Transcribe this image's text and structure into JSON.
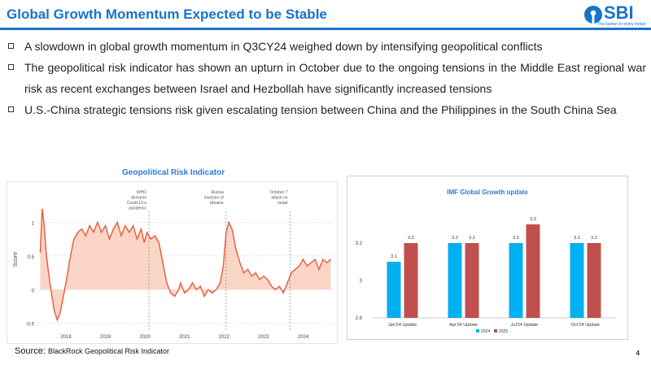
{
  "header": {
    "title": "Global Growth Momentum Expected to be Stable",
    "logo_text": "SBI",
    "logo_tagline": "The banker to every Indian"
  },
  "bullets": [
    "A slowdown in global growth momentum in Q3CY24 weighed down by intensifying geopolitical conflicts",
    "The geopolitical risk indicator has shown an upturn in October due to the ongoing tensions in the Middle East regional war risk as recent exchanges between Israel and Hezbollah have significantly increased tensions",
    "U.S.-China strategic tensions risk given escalating tension between China and the Philippines in the South China Sea"
  ],
  "source": {
    "label": "Source:",
    "text": "BlackRock Geopolitical Risk Indicator"
  },
  "page_number": "4",
  "colors": {
    "accent": "#1a73c8",
    "series_2024": "#00b0f0",
    "series_2025": "#c0504d",
    "geo_line": "#e8593c",
    "geo_fill": "#fad5c6"
  },
  "chart_data": [
    {
      "type": "area",
      "title": "Geopolitical Risk Indicator",
      "ylabel": "Score",
      "ylim": [
        -0.6,
        1.5
      ],
      "yticks": [
        "-0.5",
        "0",
        "0.5",
        "1"
      ],
      "x_tick_labels": [
        "2018",
        "2019",
        "2020",
        "2021",
        "2022",
        "2023",
        "2024"
      ],
      "annotations": [
        {
          "text": [
            "WHO",
            "declares",
            "Covid-19 a",
            "pandemic"
          ],
          "x": 2020.2
        },
        {
          "text": [
            "Russia",
            "invasion of",
            "Ukraine"
          ],
          "x": 2022.15
        },
        {
          "text": [
            "October 7",
            "attack on",
            "Israel"
          ],
          "x": 2023.77
        }
      ],
      "x": [
        2017.45,
        2017.5,
        2017.55,
        2017.6,
        2017.65,
        2017.72,
        2017.8,
        2017.88,
        2017.95,
        2018.02,
        2018.1,
        2018.2,
        2018.3,
        2018.4,
        2018.5,
        2018.6,
        2018.7,
        2018.8,
        2018.9,
        2019.0,
        2019.1,
        2019.2,
        2019.3,
        2019.4,
        2019.5,
        2019.6,
        2019.7,
        2019.8,
        2019.9,
        2020.0,
        2020.08,
        2020.15,
        2020.25,
        2020.35,
        2020.45,
        2020.55,
        2020.65,
        2020.75,
        2020.85,
        2020.95,
        2021.0,
        2021.1,
        2021.2,
        2021.3,
        2021.4,
        2021.5,
        2021.6,
        2021.7,
        2021.8,
        2021.9,
        2022.0,
        2022.08,
        2022.15,
        2022.22,
        2022.3,
        2022.4,
        2022.5,
        2022.6,
        2022.7,
        2022.8,
        2022.9,
        2023.0,
        2023.1,
        2023.2,
        2023.3,
        2023.4,
        2023.5,
        2023.6,
        2023.7,
        2023.8,
        2023.9,
        2024.0,
        2024.1,
        2024.2,
        2024.3,
        2024.4,
        2024.5,
        2024.6,
        2024.7,
        2024.8
      ],
      "y": [
        0.55,
        1.2,
        0.95,
        0.55,
        0.3,
        0.0,
        -0.3,
        -0.45,
        -0.35,
        -0.15,
        0.1,
        0.45,
        0.75,
        0.85,
        0.9,
        0.8,
        0.95,
        0.85,
        1.0,
        0.85,
        0.95,
        0.75,
        0.9,
        1.0,
        0.8,
        0.95,
        0.85,
        0.95,
        0.75,
        0.9,
        0.7,
        0.85,
        0.75,
        0.8,
        0.7,
        0.4,
        0.1,
        -0.05,
        -0.1,
        0.0,
        0.1,
        -0.05,
        0.0,
        0.1,
        0.0,
        0.05,
        -0.1,
        0.0,
        -0.05,
        0.0,
        0.1,
        0.35,
        0.85,
        1.0,
        0.9,
        0.6,
        0.4,
        0.25,
        0.3,
        0.2,
        0.25,
        0.15,
        0.2,
        0.15,
        0.05,
        0.0,
        0.05,
        -0.05,
        0.1,
        0.25,
        0.3,
        0.35,
        0.45,
        0.35,
        0.4,
        0.45,
        0.3,
        0.45,
        0.4,
        0.45
      ]
    },
    {
      "type": "bar",
      "title": "IMF Global Growth update",
      "categories": [
        "Jan'24 Update",
        "Apr'24 Update",
        "Jul'24 Update",
        "Oct'24 Update"
      ],
      "ylim": [
        2.8,
        3.4
      ],
      "yticks": [
        "2.8",
        "3",
        "3.2"
      ],
      "series": [
        {
          "name": "2024",
          "values": [
            3.1,
            3.2,
            3.2,
            3.2
          ],
          "labels": [
            "3.1",
            "3.2",
            "3.2",
            "3.2"
          ]
        },
        {
          "name": "2025",
          "values": [
            3.2,
            3.2,
            3.3,
            3.2
          ],
          "labels": [
            "3.2",
            "3.2",
            "3.3",
            "3.2"
          ]
        }
      ],
      "legend": "bottom"
    }
  ]
}
